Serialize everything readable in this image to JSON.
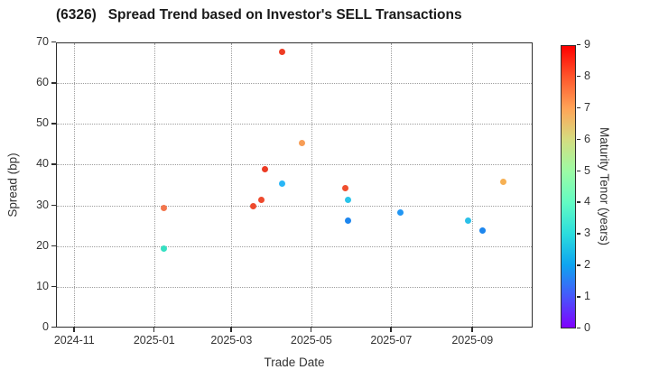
{
  "title": "(6326)   Spread Trend based on Investor's SELL Transactions",
  "axes": {
    "x": {
      "label": "Trade Date",
      "ticks": [
        "2024-11",
        "2025-01",
        "2025-03",
        "2025-05",
        "2025-07",
        "2025-09"
      ],
      "tick_dates": [
        "2024-11-01",
        "2025-01-01",
        "2025-03-01",
        "2025-05-01",
        "2025-07-01",
        "2025-09-01"
      ],
      "domain": [
        "2024-10-18",
        "2025-10-17"
      ]
    },
    "y": {
      "label": "Spread (bp)",
      "ticks": [
        0,
        10,
        20,
        30,
        40,
        50,
        60,
        70
      ],
      "range": [
        0,
        70
      ]
    }
  },
  "colorbar": {
    "label": "Maturity Tenor (years)",
    "ticks": [
      0,
      1,
      2,
      3,
      4,
      5,
      6,
      7,
      8,
      9
    ],
    "range": [
      0,
      9
    ],
    "colormap": "rainbow",
    "gradient_stops_bottom_to_top": [
      "#8000ff",
      "#4757fb",
      "#0ea4f0",
      "#2bdddd",
      "#63fbc3",
      "#9cfba4",
      "#d4dd80",
      "#ffa457",
      "#ff572c",
      "#ff0000"
    ]
  },
  "chart_data": {
    "type": "scatter",
    "title": "(6326)   Spread Trend based on Investor's SELL Transactions",
    "xlabel": "Trade Date",
    "ylabel": "Spread (bp)",
    "ylim": [
      0,
      70
    ],
    "grid": true,
    "color_dimension": "Maturity Tenor (years)",
    "points": [
      {
        "date": "2025-01-08",
        "spread": 29.5,
        "tenor": 7.5,
        "color": "#f3764d"
      },
      {
        "date": "2025-01-08",
        "spread": 19.5,
        "tenor": 3.5,
        "color": "#35e0c2"
      },
      {
        "date": "2025-03-17",
        "spread": 30.0,
        "tenor": 8.0,
        "color": "#ee4a2d"
      },
      {
        "date": "2025-03-23",
        "spread": 31.5,
        "tenor": 8.0,
        "color": "#ee4a2d"
      },
      {
        "date": "2025-03-26",
        "spread": 39.0,
        "tenor": 8.5,
        "color": "#ec3b24"
      },
      {
        "date": "2025-04-08",
        "spread": 68.0,
        "tenor": 8.5,
        "color": "#ee3c24"
      },
      {
        "date": "2025-04-08",
        "spread": 35.5,
        "tenor": 2.3,
        "color": "#29b6f6"
      },
      {
        "date": "2025-04-23",
        "spread": 45.5,
        "tenor": 7.0,
        "color": "#f79d56"
      },
      {
        "date": "2025-05-26",
        "spread": 34.5,
        "tenor": 8.0,
        "color": "#f04f2e"
      },
      {
        "date": "2025-05-28",
        "spread": 31.5,
        "tenor": 2.7,
        "color": "#2ac4ea"
      },
      {
        "date": "2025-05-28",
        "spread": 26.5,
        "tenor": 1.8,
        "color": "#1d86ee"
      },
      {
        "date": "2025-07-07",
        "spread": 28.5,
        "tenor": 2.0,
        "color": "#2196f3"
      },
      {
        "date": "2025-08-28",
        "spread": 26.5,
        "tenor": 2.7,
        "color": "#2bc0e8"
      },
      {
        "date": "2025-09-08",
        "spread": 24.0,
        "tenor": 1.8,
        "color": "#1d86ee"
      },
      {
        "date": "2025-09-24",
        "spread": 36.0,
        "tenor": 6.7,
        "color": "#f6b053"
      }
    ]
  }
}
